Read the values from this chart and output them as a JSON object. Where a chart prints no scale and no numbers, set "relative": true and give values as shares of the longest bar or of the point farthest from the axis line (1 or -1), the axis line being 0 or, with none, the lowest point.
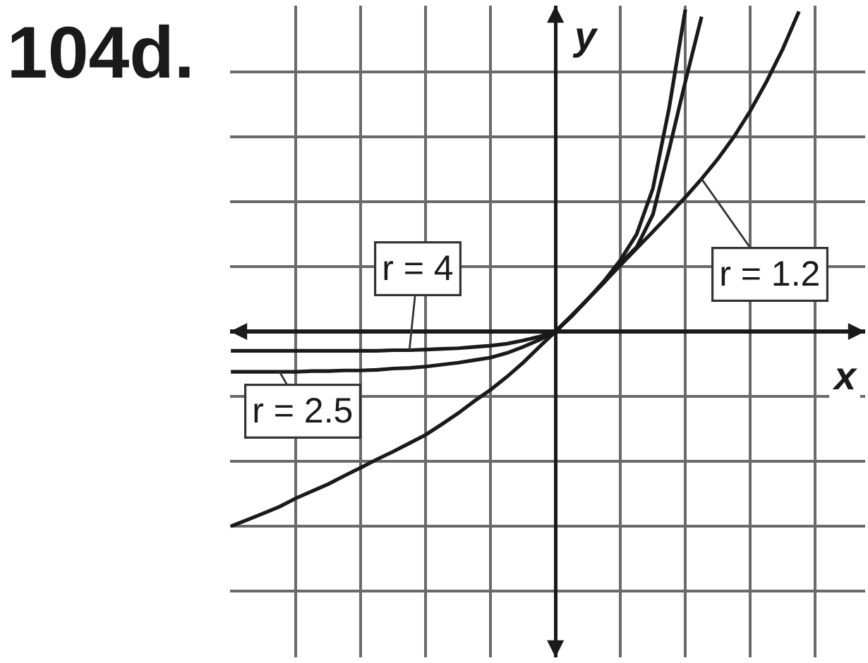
{
  "chart_data": {
    "type": "line",
    "title": "104d.",
    "xlabel": "x",
    "ylabel": "y",
    "relative": true,
    "grid": true,
    "categories": [
      null,
      null,
      null,
      null,
      null,
      null,
      null,
      null,
      null,
      null,
      null,
      null,
      null,
      null,
      null,
      null,
      null,
      null,
      null,
      null,
      null,
      null,
      null,
      null,
      null,
      null,
      null,
      null,
      null,
      null,
      null,
      null,
      null,
      null,
      null,
      null,
      null,
      null,
      null,
      null
    ],
    "series": [
      {
        "name": "r = 2.5",
        "color": "#1a1a1a",
        "values": [
          -0.125,
          -0.125,
          -0.125,
          -0.125,
          -0.125,
          -0.123,
          -0.123,
          -0.121,
          -0.121,
          -0.119,
          -0.115,
          -0.113,
          -0.109,
          -0.103,
          -0.097,
          -0.089,
          -0.081,
          -0.067,
          -0.048,
          -0.026,
          0,
          0.048,
          0.101,
          0.153,
          0.212,
          0.262,
          0.363,
          0.565,
          0.776,
          0.978,
          null,
          null,
          null,
          null,
          null,
          null,
          null,
          null,
          null,
          null
        ]
      },
      {
        "name": "r = 4",
        "color": "#1a1a1a",
        "values": [
          -0.06,
          -0.06,
          -0.06,
          -0.06,
          -0.06,
          -0.06,
          -0.06,
          -0.06,
          -0.06,
          -0.06,
          -0.058,
          -0.058,
          -0.056,
          -0.054,
          -0.052,
          -0.048,
          -0.044,
          -0.038,
          -0.028,
          -0.016,
          0,
          0.048,
          0.101,
          0.157,
          0.222,
          0.302,
          0.444,
          0.694,
          1,
          null,
          null,
          null,
          null,
          null,
          null,
          null,
          null,
          null,
          null,
          null
        ]
      },
      {
        "name": "r = 1.2",
        "color": "#1a1a1a",
        "values": [
          -0.605,
          -0.585,
          -0.565,
          -0.544,
          -0.518,
          -0.496,
          -0.474,
          -0.448,
          -0.423,
          -0.397,
          -0.373,
          -0.347,
          -0.321,
          -0.288,
          -0.254,
          -0.216,
          -0.181,
          -0.141,
          -0.097,
          -0.048,
          0,
          0.05,
          0.101,
          0.153,
          0.206,
          0.258,
          0.31,
          0.363,
          0.417,
          0.474,
          0.536,
          0.605,
          0.685,
          0.776,
          0.877,
          0.994,
          null,
          null,
          null,
          null
        ]
      }
    ]
  }
}
